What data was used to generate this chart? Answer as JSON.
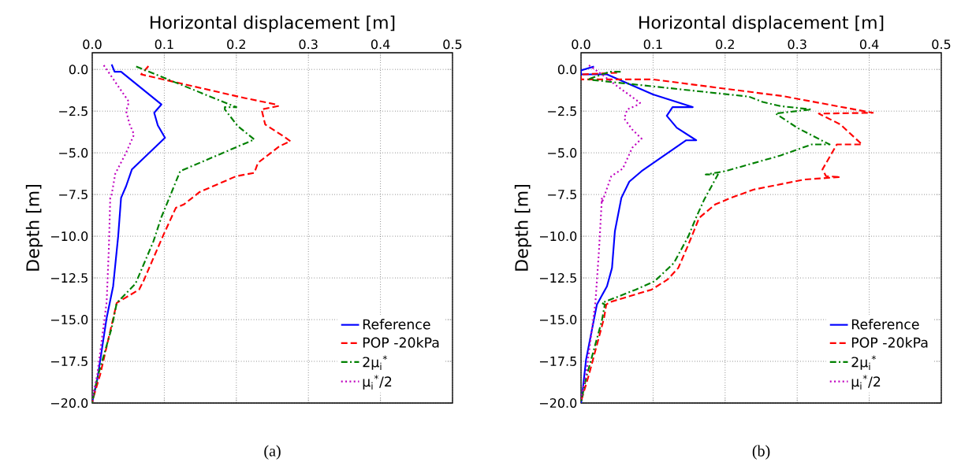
{
  "chart_data": [
    {
      "type": "line",
      "xlabel": "Horizontal displacement [m]",
      "ylabel": "Depth [m]",
      "annotations": [
        "(a)"
      ],
      "xlim": [
        0,
        0.5
      ],
      "ylim": [
        -20,
        1
      ],
      "xticks": [
        {
          "value": 0,
          "label": "0.0"
        },
        {
          "value": 0.1,
          "label": "0.1"
        },
        {
          "value": 0.2,
          "label": "0.2"
        },
        {
          "value": 0.3,
          "label": "0.3"
        },
        {
          "value": 0.4,
          "label": "0.4"
        },
        {
          "value": 0.5,
          "label": "0.5"
        }
      ],
      "yticks": [
        {
          "value": 0,
          "label": "0.0"
        },
        {
          "value": -2.5,
          "label": "−2.5"
        },
        {
          "value": -5,
          "label": "−5.0"
        },
        {
          "value": -7.5,
          "label": "−7.5"
        },
        {
          "value": -10,
          "label": "−10.0"
        },
        {
          "value": -12.5,
          "label": "−12.5"
        },
        {
          "value": -15,
          "label": "−15.0"
        },
        {
          "value": -17.5,
          "label": "−17.5"
        },
        {
          "value": -20,
          "label": "−20.0"
        }
      ],
      "grid": true,
      "legend": "bottom right",
      "series": [
        {
          "name": "Reference",
          "color": "#0000ff",
          "line_style": "solid",
          "x": [
            0.027,
            0.031,
            0.04,
            0.096,
            0.086,
            0.091,
            0.101,
            0.055,
            0.047,
            0.04,
            0.036,
            0.029,
            0.02,
            0.007,
            0.001,
            0
          ],
          "values": [
            0.3,
            -0.14,
            -0.14,
            -2.1,
            -2.6,
            -3.35,
            -4.1,
            -6.0,
            -7.0,
            -7.7,
            -10.0,
            -13.0,
            -14.9,
            -18.6,
            -19.75,
            -20
          ]
        },
        {
          "name": "POP -20kPa",
          "color": "#ff0000",
          "line_style": "dashed",
          "x": [
            0.078,
            0.068,
            0.21,
            0.255,
            0.258,
            0.235,
            0.24,
            0.265,
            0.275,
            0.26,
            0.23,
            0.225,
            0.2,
            0.149,
            0.127,
            0.116,
            0.098,
            0.071,
            0.065,
            0.034,
            0.011,
            0.001,
            0
          ],
          "values": [
            0.2,
            -0.3,
            -1.7,
            -2.1,
            -2.2,
            -2.4,
            -3.3,
            -4.0,
            -4.3,
            -4.6,
            -5.6,
            -6.2,
            -6.4,
            -7.35,
            -8.1,
            -8.3,
            -10.0,
            -12.7,
            -13.2,
            -14.0,
            -18.3,
            -19.75,
            -20
          ]
        },
        {
          "name": "2μ$_{i}$$^{*}$",
          "color": "#008000",
          "line_style": "dashdot",
          "x": [
            0.061,
            0.2,
            0.184,
            0.184,
            0.202,
            0.225,
            0.122,
            0.107,
            0.096,
            0.085,
            0.06,
            0.034,
            0.027,
            0.007,
            0.001,
            0
          ],
          "values": [
            0.17,
            -2.26,
            -2.26,
            -2.4,
            -3.4,
            -4.2,
            -6.1,
            -7.7,
            -8.85,
            -10.3,
            -12.85,
            -14.0,
            -15.5,
            -18.5,
            -19.75,
            -20
          ]
        },
        {
          "name": "μ$_{i}$$^{*}$/2",
          "color": "#bf00bf",
          "line_style": "dotted",
          "x": [
            0.016,
            0.051,
            0.047,
            0.052,
            0.058,
            0.047,
            0.032,
            0.027,
            0.025,
            0.023,
            0.02,
            0.007,
            0
          ],
          "values": [
            0.25,
            -1.95,
            -2.5,
            -3.3,
            -3.9,
            -5.0,
            -6.25,
            -7.5,
            -7.7,
            -10.8,
            -13.95,
            -18.3,
            -19.75
          ]
        }
      ]
    },
    {
      "type": "line",
      "xlabel": "Horizontal displacement [m]",
      "ylabel": "Depth [m]",
      "annotations": [
        "(b)"
      ],
      "xlim": [
        0,
        0.5
      ],
      "ylim": [
        -20,
        1
      ],
      "xticks": [
        {
          "value": 0,
          "label": "0.0"
        },
        {
          "value": 0.1,
          "label": "0.1"
        },
        {
          "value": 0.2,
          "label": "0.2"
        },
        {
          "value": 0.3,
          "label": "0.3"
        },
        {
          "value": 0.4,
          "label": "0.4"
        },
        {
          "value": 0.5,
          "label": "0.5"
        }
      ],
      "yticks": [
        {
          "value": 0,
          "label": "0.0"
        },
        {
          "value": -2.5,
          "label": "−2.5"
        },
        {
          "value": -5,
          "label": "−5.0"
        },
        {
          "value": -7.5,
          "label": "−7.5"
        },
        {
          "value": -10,
          "label": "−10.0"
        },
        {
          "value": -12.5,
          "label": "−12.5"
        },
        {
          "value": -15,
          "label": "−15.0"
        },
        {
          "value": -17.5,
          "label": "−17.5"
        },
        {
          "value": -20,
          "label": "−20.0"
        }
      ],
      "grid": true,
      "legend": "bottom right",
      "series": [
        {
          "name": "Reference",
          "color": "#0000ff",
          "line_style": "solid",
          "x": [
            0.018,
            0,
            0,
            0.036,
            0.1,
            0.155,
            0.127,
            0.119,
            0.133,
            0.16,
            0.146,
            0.084,
            0.067,
            0.056,
            0.047,
            0.043,
            0.036,
            0.022,
            0.007,
            0.001,
            0
          ],
          "values": [
            0.17,
            -0.06,
            -0.3,
            -0.3,
            -1.5,
            -2.26,
            -2.26,
            -2.78,
            -3.5,
            -4.25,
            -4.25,
            -6.1,
            -6.73,
            -7.7,
            -9.7,
            -11.9,
            -13.0,
            -14.1,
            -17.4,
            -19.75,
            -20
          ]
        },
        {
          "name": "POP -20kPa",
          "color": "#ff0000",
          "line_style": "dashed",
          "x": [
            0.05,
            0,
            0,
            0.1,
            0.28,
            0.405,
            0.33,
            0.36,
            0.39,
            0.355,
            0.335,
            0.34,
            0.36,
            0.31,
            0.24,
            0.208,
            0.186,
            0.164,
            0.149,
            0.135,
            0.12,
            0.098,
            0.04,
            0.035,
            0.032,
            0.011,
            0.001,
            0
          ],
          "values": [
            -0.2,
            -0.3,
            -0.6,
            -0.6,
            -1.6,
            -2.6,
            -2.65,
            -3.3,
            -4.5,
            -4.5,
            -6.0,
            -6.4,
            -6.45,
            -6.6,
            -7.2,
            -7.7,
            -8.1,
            -8.9,
            -10.5,
            -11.9,
            -12.6,
            -13.2,
            -13.95,
            -14.1,
            -14.9,
            -18.3,
            -19.75,
            -20
          ]
        },
        {
          "name": "2μ$_{i}$$^{*}$",
          "color": "#008000",
          "line_style": "dashdot",
          "x": [
            0.055,
            0.04,
            0.009,
            0.233,
            0.252,
            0.277,
            0.32,
            0.27,
            0.3,
            0.345,
            0.32,
            0.277,
            0.2,
            0.173,
            0.19,
            0.171,
            0.16,
            0.149,
            0.129,
            0.102,
            0.076,
            0.029,
            0.033,
            0.029,
            0.007,
            0.001,
            0
          ],
          "values": [
            -0.14,
            -0.14,
            -0.6,
            -1.63,
            -1.95,
            -2.2,
            -2.4,
            -2.64,
            -3.5,
            -4.5,
            -4.5,
            -5.16,
            -6.1,
            -6.3,
            -6.3,
            -7.8,
            -8.85,
            -10.0,
            -11.6,
            -12.7,
            -13.2,
            -14.0,
            -14.1,
            -15.05,
            -18.5,
            -19.75,
            -20
          ]
        },
        {
          "name": "μ$_{i}$$^{*}$/2",
          "color": "#bf00bf",
          "line_style": "dotted",
          "x": [
            0.011,
            0.029,
            0.05,
            0.082,
            0.08,
            0.064,
            0.06,
            0.071,
            0.084,
            0.071,
            0.058,
            0.042,
            0.029,
            0.029,
            0.025,
            0.02,
            0.007,
            0
          ],
          "values": [
            0.25,
            -0.3,
            -1.0,
            -2.0,
            -2.1,
            -2.4,
            -2.95,
            -3.6,
            -4.15,
            -4.7,
            -5.95,
            -6.4,
            -8.0,
            -7.7,
            -10.8,
            -13.95,
            -18.3,
            -19.75
          ]
        }
      ]
    }
  ]
}
